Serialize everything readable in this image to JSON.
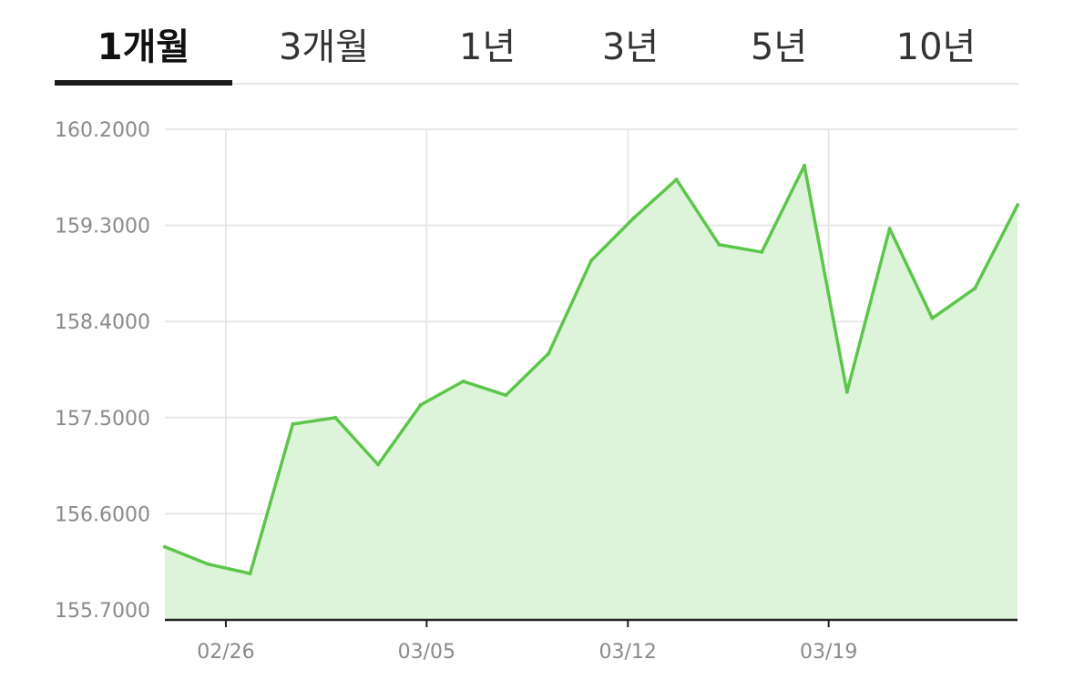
{
  "tabs": [
    {
      "label": "1개월",
      "active": true
    },
    {
      "label": "3개월",
      "active": false
    },
    {
      "label": "1년",
      "active": false
    },
    {
      "label": "3년",
      "active": false
    },
    {
      "label": "5년",
      "active": false
    },
    {
      "label": "10년",
      "active": false
    }
  ],
  "colors": {
    "line": "#5cc64a",
    "fill": "#ddf4da",
    "grid": "#e8e8e8",
    "axis": "#222222"
  },
  "chart_data": {
    "type": "area",
    "x_tick_labels": [
      "02/26",
      "03/05",
      "03/12",
      "03/19"
    ],
    "x_tick_indices": [
      1.43,
      6.14,
      10.86,
      15.57
    ],
    "y_ticks": [
      "160.2000",
      "159.3000",
      "158.4000",
      "157.5000",
      "156.6000",
      "155.7000"
    ],
    "ylim": [
      155.7,
      160.2
    ],
    "grid": true,
    "values": [
      156.29,
      156.13,
      156.04,
      157.44,
      157.5,
      157.06,
      157.62,
      157.84,
      157.71,
      158.1,
      158.97,
      159.37,
      159.73,
      159.12,
      159.05,
      159.86,
      157.74,
      159.27,
      158.43,
      158.71,
      159.49
    ]
  }
}
